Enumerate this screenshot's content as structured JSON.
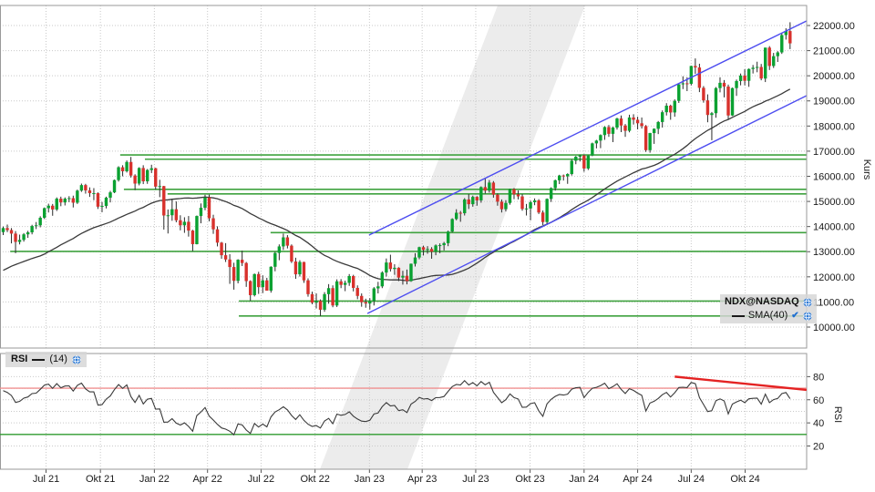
{
  "legend": {
    "symbol": "NDX@NASDAQ",
    "sma": "SMA(40)",
    "check": "✔"
  },
  "rsi_legend": {
    "title": "RSI",
    "period": "(14)"
  },
  "axes": {
    "price": {
      "label": "Kurs",
      "ticks": [
        22000,
        21000,
        20000,
        19000,
        18000,
        17000,
        16000,
        15000,
        14000,
        13000,
        12000,
        11000,
        10000
      ]
    },
    "rsi": {
      "label": "RSI",
      "ticks": [
        80,
        60,
        40,
        20
      ]
    },
    "time": {
      "labels": [
        {
          "text": "Jul 21",
          "week": 10.4
        },
        {
          "text": "Okt 21",
          "week": 23.6
        },
        {
          "text": "Jan 22",
          "week": 36.7
        },
        {
          "text": "Apr 22",
          "week": 49.6
        },
        {
          "text": "Jul 22",
          "week": 62.6
        },
        {
          "text": "Okt 22",
          "week": 75.7
        },
        {
          "text": "Jan 23",
          "week": 88.9
        },
        {
          "text": "Apr 23",
          "week": 101.7
        },
        {
          "text": "Jul 23",
          "week": 114.7
        },
        {
          "text": "Okt 23",
          "week": 127.9
        },
        {
          "text": "Jan 24",
          "week": 141.0
        },
        {
          "text": "Apr 24",
          "week": 154.0
        },
        {
          "text": "Jul 24",
          "week": 167.0
        },
        {
          "text": "Okt 24",
          "week": 180.1
        }
      ]
    }
  },
  "colors": {
    "up": "#0aa131",
    "down": "#d8312c",
    "wick": "#2a2a2a",
    "sma": "#3a3a3a",
    "trend_blue": "#4d4df0",
    "support_green": "#3fa23f",
    "grid": "#c9c9c9",
    "border": "#9a9a9a",
    "rsi_curve": "#3a3a3a",
    "rsi_upper_line": "#f09090",
    "rsi_lower_line": "#2f9b2f",
    "rsi_trend": "#e42222",
    "watermark": "#ececec",
    "text": "#1a1a1a"
  },
  "chart_data": {
    "type": "candlestick",
    "symbol": "NDX@NASDAQ",
    "price_axis_range": [
      10000,
      22000
    ],
    "rsi_axis_range": [
      0,
      100
    ],
    "indicators": [
      "SMA(40)",
      "RSI(14)"
    ],
    "pre_closes": [
      10350,
      10600,
      10500,
      10750,
      11000,
      11200,
      11450,
      11600,
      11900,
      12420,
      11830,
      11050,
      11200,
      11400,
      11150,
      11660,
      11850,
      11670,
      11000,
      11890,
      12300,
      12270,
      12470,
      12520,
      12680,
      12890,
      12950,
      12850,
      13070,
      13390,
      13600,
      13340,
      13120,
      12910,
      13280,
      12770,
      13070,
      13310,
      13690,
      13780
    ],
    "candles": [
      [
        13780,
        14000,
        13660,
        13940
      ],
      [
        13940,
        14080,
        13780,
        13860
      ],
      [
        13860,
        13940,
        13330,
        13720
      ],
      [
        13720,
        13820,
        12940,
        13390
      ],
      [
        13390,
        13680,
        13290,
        13470
      ],
      [
        13470,
        13740,
        13400,
        13690
      ],
      [
        13690,
        13830,
        13550,
        13770
      ],
      [
        13770,
        14070,
        13690,
        14020
      ],
      [
        14020,
        14180,
        13900,
        14050
      ],
      [
        14050,
        14410,
        13970,
        14350
      ],
      [
        14350,
        14760,
        14300,
        14730
      ],
      [
        14730,
        14910,
        14560,
        14830
      ],
      [
        14830,
        14900,
        14430,
        14680
      ],
      [
        14680,
        15160,
        14620,
        15110
      ],
      [
        15110,
        15190,
        14810,
        14960
      ],
      [
        14960,
        15160,
        14840,
        15110
      ],
      [
        15110,
        15210,
        14970,
        15130
      ],
      [
        15130,
        15230,
        14760,
        14950
      ],
      [
        14950,
        15470,
        14900,
        15430
      ],
      [
        15430,
        15710,
        15380,
        15650
      ],
      [
        15650,
        15700,
        15310,
        15440
      ],
      [
        15440,
        15560,
        15180,
        15330
      ],
      [
        15330,
        15530,
        15050,
        15330
      ],
      [
        15330,
        15360,
        14700,
        14790
      ],
      [
        14790,
        14980,
        14570,
        14820
      ],
      [
        14820,
        15190,
        14720,
        15150
      ],
      [
        15150,
        15420,
        14960,
        15360
      ],
      [
        15360,
        15870,
        15330,
        15850
      ],
      [
        15850,
        16400,
        15790,
        16360
      ],
      [
        16360,
        16440,
        16000,
        16200
      ],
      [
        16200,
        16630,
        16150,
        16570
      ],
      [
        16570,
        16770,
        15950,
        16030
      ],
      [
        16030,
        16080,
        15450,
        15710
      ],
      [
        15710,
        16360,
        15640,
        16330
      ],
      [
        16330,
        16440,
        15690,
        15800
      ],
      [
        15800,
        16290,
        15700,
        16250
      ],
      [
        16250,
        16460,
        16130,
        16320
      ],
      [
        16320,
        16340,
        15470,
        15590
      ],
      [
        15590,
        15860,
        15170,
        15610
      ],
      [
        15610,
        15620,
        13880,
        14440
      ],
      [
        14440,
        14680,
        13725,
        14450
      ],
      [
        14450,
        15090,
        14230,
        14690
      ],
      [
        14690,
        15000,
        14170,
        14250
      ],
      [
        14250,
        14450,
        13850,
        14050
      ],
      [
        14050,
        14370,
        13750,
        14190
      ],
      [
        14190,
        14420,
        13600,
        13840
      ],
      [
        13840,
        13870,
        13020,
        13300
      ],
      [
        13300,
        14440,
        13290,
        14420
      ],
      [
        14420,
        14920,
        14130,
        14750
      ],
      [
        14750,
        15265,
        14650,
        15160
      ],
      [
        15160,
        15270,
        14210,
        14330
      ],
      [
        14330,
        14470,
        13710,
        13890
      ],
      [
        13890,
        14010,
        13210,
        13360
      ],
      [
        13360,
        13390,
        12720,
        12860
      ],
      [
        12860,
        13340,
        12590,
        12690
      ],
      [
        12690,
        12900,
        11720,
        12390
      ],
      [
        12390,
        12560,
        11490,
        11840
      ],
      [
        11840,
        12700,
        11740,
        12680
      ],
      [
        12680,
        13040,
        12430,
        12550
      ],
      [
        12550,
        12590,
        11600,
        11830
      ],
      [
        11830,
        11860,
        11040,
        11270
      ],
      [
        11270,
        12130,
        11220,
        12110
      ],
      [
        12110,
        12200,
        11320,
        11590
      ],
      [
        11590,
        12060,
        11350,
        11860
      ],
      [
        11860,
        11960,
        11450,
        11450
      ],
      [
        11450,
        12420,
        11370,
        12400
      ],
      [
        12400,
        12990,
        12220,
        12950
      ],
      [
        12950,
        13290,
        12660,
        13210
      ],
      [
        13210,
        13720,
        13070,
        13570
      ],
      [
        13570,
        13660,
        13130,
        13240
      ],
      [
        13240,
        13290,
        12550,
        12610
      ],
      [
        12610,
        12760,
        11920,
        12100
      ],
      [
        12100,
        12660,
        12010,
        12590
      ],
      [
        12590,
        12600,
        11760,
        11860
      ],
      [
        11860,
        11940,
        11210,
        11310
      ],
      [
        11310,
        11410,
        10910,
        10970
      ],
      [
        10970,
        11340,
        10740,
        11040
      ],
      [
        11040,
        11100,
        10440,
        10690
      ],
      [
        10690,
        11390,
        10610,
        11310
      ],
      [
        11310,
        11710,
        10930,
        11550
      ],
      [
        11550,
        11660,
        10790,
        10860
      ],
      [
        10860,
        11900,
        10800,
        11820
      ],
      [
        11820,
        11910,
        11550,
        11680
      ],
      [
        11680,
        11850,
        11430,
        11760
      ],
      [
        11760,
        12110,
        11640,
        12030
      ],
      [
        12030,
        12080,
        11420,
        11560
      ],
      [
        11560,
        11660,
        11110,
        11240
      ],
      [
        11240,
        11340,
        10810,
        10990
      ],
      [
        10990,
        11130,
        10770,
        10940
      ],
      [
        10940,
        11150,
        10700,
        11040
      ],
      [
        11040,
        11590,
        10860,
        11540
      ],
      [
        11540,
        11800,
        11340,
        11620
      ],
      [
        11620,
        12220,
        11550,
        12170
      ],
      [
        12170,
        12730,
        12010,
        12570
      ],
      [
        12570,
        12880,
        12210,
        12310
      ],
      [
        12310,
        12500,
        12080,
        12360
      ],
      [
        12360,
        12380,
        11830,
        11970
      ],
      [
        11970,
        12240,
        11690,
        12040
      ],
      [
        12040,
        12290,
        11700,
        11830
      ],
      [
        11830,
        12530,
        11800,
        12520
      ],
      [
        12520,
        12940,
        12410,
        12770
      ],
      [
        12770,
        13200,
        12700,
        13180
      ],
      [
        13180,
        13240,
        12850,
        13070
      ],
      [
        13070,
        13220,
        12920,
        13110
      ],
      [
        13110,
        13180,
        12720,
        13000
      ],
      [
        13000,
        13290,
        12860,
        13250
      ],
      [
        13250,
        13330,
        12940,
        13260
      ],
      [
        13260,
        13390,
        13050,
        13340
      ],
      [
        13340,
        13840,
        13220,
        13800
      ],
      [
        13800,
        14330,
        13770,
        14300
      ],
      [
        14300,
        14690,
        14250,
        14550
      ],
      [
        14550,
        14620,
        14190,
        14530
      ],
      [
        14530,
        15130,
        14440,
        15080
      ],
      [
        15080,
        15290,
        14700,
        14890
      ],
      [
        14890,
        15230,
        14790,
        15180
      ],
      [
        15180,
        15210,
        14830,
        15040
      ],
      [
        15040,
        15600,
        14950,
        15570
      ],
      [
        15570,
        15930,
        15310,
        15430
      ],
      [
        15430,
        15850,
        15350,
        15750
      ],
      [
        15750,
        15810,
        15150,
        15270
      ],
      [
        15270,
        15320,
        14830,
        14990
      ],
      [
        14990,
        15080,
        14560,
        14690
      ],
      [
        14690,
        15050,
        14600,
        14940
      ],
      [
        14940,
        15510,
        14870,
        15490
      ],
      [
        15490,
        15530,
        15090,
        15280
      ],
      [
        15280,
        15440,
        15080,
        15200
      ],
      [
        15200,
        15290,
        14630,
        14700
      ],
      [
        14700,
        14900,
        14440,
        14720
      ],
      [
        14720,
        15030,
        14250,
        14970
      ],
      [
        14970,
        15120,
        14850,
        15040
      ],
      [
        15040,
        15090,
        14500,
        14560
      ],
      [
        14560,
        14640,
        14060,
        14180
      ],
      [
        14180,
        15120,
        14110,
        15100
      ],
      [
        15100,
        15560,
        14980,
        15530
      ],
      [
        15530,
        15870,
        15430,
        15840
      ],
      [
        15840,
        16060,
        15690,
        16030
      ],
      [
        16030,
        16070,
        15830,
        16000
      ],
      [
        16000,
        16120,
        15700,
        16090
      ],
      [
        16090,
        16660,
        16030,
        16620
      ],
      [
        16620,
        16810,
        16480,
        16780
      ],
      [
        16780,
        16860,
        16590,
        16830
      ],
      [
        16830,
        16870,
        16180,
        16310
      ],
      [
        16310,
        16840,
        16250,
        16830
      ],
      [
        16830,
        17340,
        16800,
        17310
      ],
      [
        17310,
        17450,
        17110,
        17420
      ],
      [
        17420,
        17670,
        17120,
        17640
      ],
      [
        17640,
        17990,
        17450,
        17960
      ],
      [
        17960,
        18040,
        17570,
        17690
      ],
      [
        17690,
        17970,
        17360,
        17940
      ],
      [
        17940,
        18330,
        17860,
        18300
      ],
      [
        18300,
        18420,
        17760,
        18020
      ],
      [
        18020,
        18080,
        17570,
        17810
      ],
      [
        17810,
        18450,
        17750,
        18340
      ],
      [
        18340,
        18470,
        18060,
        18250
      ],
      [
        18250,
        18370,
        17870,
        18110
      ],
      [
        18110,
        18340,
        17900,
        18000
      ],
      [
        18000,
        18040,
        16970,
        17040
      ],
      [
        17040,
        17730,
        16940,
        17720
      ],
      [
        17720,
        17910,
        17290,
        17890
      ],
      [
        17890,
        18200,
        17680,
        18160
      ],
      [
        18160,
        18620,
        17940,
        18550
      ],
      [
        18550,
        18910,
        18420,
        18810
      ],
      [
        18810,
        18850,
        18250,
        18540
      ],
      [
        18540,
        19060,
        18370,
        19000
      ],
      [
        19000,
        19680,
        18920,
        19660
      ],
      [
        19660,
        19980,
        19470,
        19700
      ],
      [
        19700,
        19940,
        19390,
        19680
      ],
      [
        19680,
        20400,
        19620,
        20390
      ],
      [
        20390,
        20690,
        20080,
        20330
      ],
      [
        20330,
        20480,
        19350,
        19520
      ],
      [
        19520,
        19590,
        18930,
        19020
      ],
      [
        19020,
        19260,
        18150,
        18440
      ],
      [
        18440,
        18560,
        17435,
        18510
      ],
      [
        18510,
        19550,
        18330,
        19510
      ],
      [
        19510,
        19940,
        19340,
        19720
      ],
      [
        19720,
        19830,
        19140,
        19570
      ],
      [
        19570,
        19650,
        18260,
        18420
      ],
      [
        18420,
        19530,
        18400,
        19510
      ],
      [
        19510,
        19850,
        19200,
        19790
      ],
      [
        19790,
        20090,
        19620,
        20010
      ],
      [
        20010,
        20260,
        19620,
        19800
      ],
      [
        19800,
        20290,
        19560,
        20270
      ],
      [
        20270,
        20430,
        20090,
        20320
      ],
      [
        20320,
        20560,
        20140,
        20350
      ],
      [
        20350,
        20470,
        19820,
        19890
      ],
      [
        19890,
        21120,
        19750,
        21120
      ],
      [
        21120,
        21180,
        20230,
        20390
      ],
      [
        20390,
        20910,
        20310,
        20780
      ],
      [
        20780,
        20980,
        20550,
        20930
      ],
      [
        20930,
        21700,
        20870,
        21620
      ],
      [
        21620,
        21890,
        21440,
        21780
      ],
      [
        21780,
        22130,
        21060,
        21290
      ]
    ],
    "support_resistance": [
      {
        "value": 16850,
        "from_week": 28.4
      },
      {
        "value": 16680,
        "from_week": 34.4
      },
      {
        "value": 15480,
        "from_week": 29.3
      },
      {
        "value": 15300,
        "from_week": 39.9
      },
      {
        "value": 13760,
        "from_week": 64.9
      },
      {
        "value": 13010,
        "from_week": 1.7
      },
      {
        "value": 11035,
        "from_week": 57.2
      },
      {
        "value": 10440,
        "from_week": 57.2
      }
    ],
    "price_trendlines": [
      {
        "from": [
          88.8,
          13660
        ],
        "to": [
          195,
          22180
        ]
      },
      {
        "from": [
          88.4,
          10540
        ],
        "to": [
          195,
          19210
        ]
      }
    ],
    "rsi_levels": [
      {
        "value": 70,
        "kind": "upper"
      },
      {
        "value": 30,
        "kind": "lower"
      }
    ],
    "rsi_trendline": {
      "from": [
        163,
        80
      ],
      "to": [
        195,
        68.5
      ]
    }
  }
}
